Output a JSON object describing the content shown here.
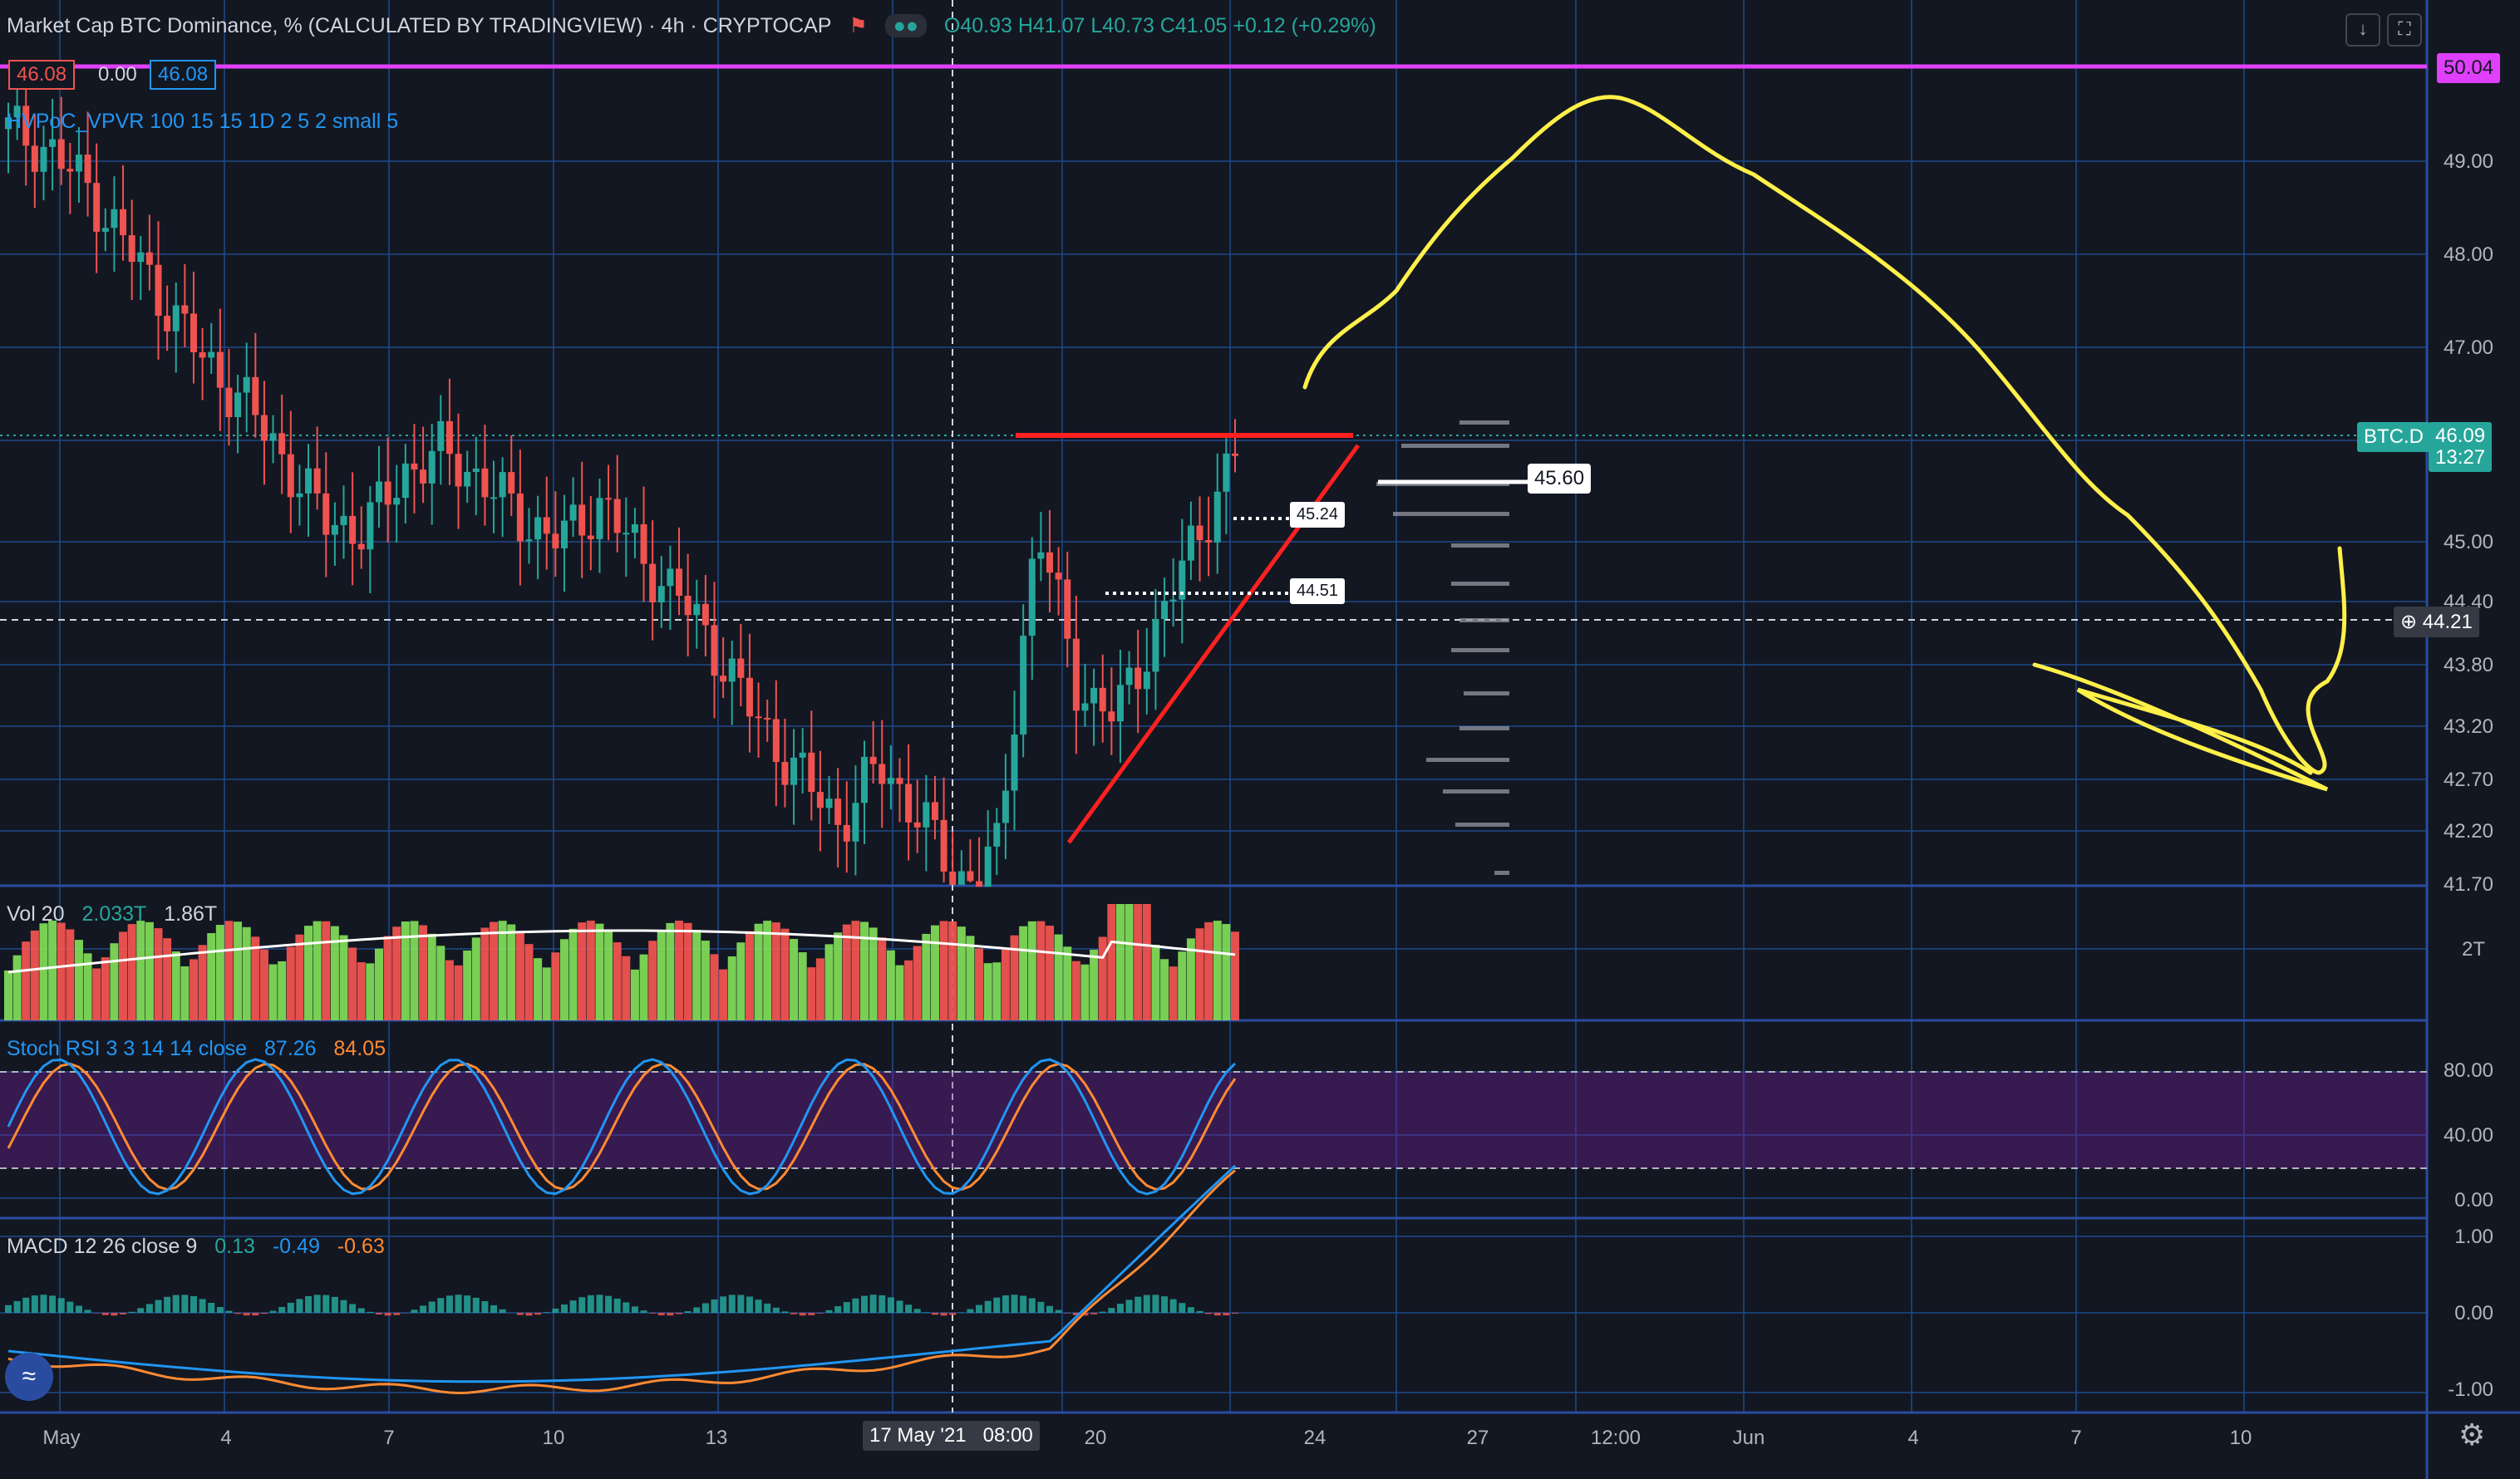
{
  "header": {
    "title": "Market Cap BTC Dominance, % (CALCULATED BY TRADINGVIEW) · 4h · CRYPTOCAP",
    "ohlc": "O40.93 H41.07 L40.73 C41.05 +0.12 (+0.29%)",
    "price_box_left": "46.08",
    "price_box_mid": "0.00",
    "price_box_right": "46.08",
    "indicator_vpvr": "HVPoC_VPVR 100 15 15 1D 2 5 2 small 5"
  },
  "panes": {
    "volume": {
      "label": "Vol 20",
      "v1": "2.033T",
      "v2": "1.86T",
      "axis": [
        "2T"
      ]
    },
    "stoch": {
      "label": "Stoch RSI 3 3 14 14 close",
      "k": "87.26",
      "d": "84.05",
      "axis": [
        "80.00",
        "40.00",
        "0.00"
      ]
    },
    "macd": {
      "label": "MACD 12 26 close 9",
      "hist": "0.13",
      "macd": "-0.49",
      "signal": "-0.63",
      "axis": [
        "1.00",
        "0.00",
        "-1.00"
      ]
    }
  },
  "price_axis": {
    "ticks": [
      "49.00",
      "48.00",
      "47.00",
      "45.00",
      "44.40",
      "43.80",
      "43.20",
      "42.70",
      "42.20",
      "41.70"
    ],
    "badges": {
      "magenta": "50.04",
      "btcd_symbol": "BTC.D",
      "btcd_price": "46.09",
      "btcd_countdown": "13:27",
      "crosshair": "44.21"
    }
  },
  "time_axis": {
    "ticks": [
      "May",
      "4",
      "7",
      "10",
      "13",
      "20",
      "24",
      "27",
      "12:00",
      "Jun",
      "4",
      "7",
      "10"
    ],
    "crosshair_label": "17 May '21   08:00"
  },
  "callouts": {
    "poc": "45.60",
    "level1": "45.24",
    "level2": "44.51"
  },
  "chart_data": {
    "type": "candlestick",
    "title": "Market Cap BTC Dominance, % (CALCULATED BY TRADINGVIEW)",
    "interval": "4h",
    "ylim": [
      41.7,
      50.3
    ],
    "candles_approx_close": [
      49.4,
      49.2,
      48.8,
      48.2,
      47.6,
      47.0,
      46.6,
      46.0,
      45.4,
      45.3,
      45.9,
      46.1,
      45.8,
      45.4,
      45.2,
      45.6,
      45.0,
      44.6,
      44.0,
      43.3,
      42.8,
      42.3,
      42.9,
      42.4,
      41.7,
      42.0,
      45.4,
      43.7,
      43.4,
      44.3,
      45.2,
      46.09
    ],
    "horizontal_lines": [
      50.04,
      46.09,
      44.21
    ],
    "stoch_rsi": {
      "k": 87.26,
      "d": 84.05,
      "bands": [
        80,
        20
      ]
    },
    "macd": {
      "hist": 0.13,
      "macd": -0.49,
      "signal": -0.63
    }
  },
  "colors": {
    "bg": "#131722",
    "up": "#26a69a",
    "down": "#ef5350",
    "grid": "#1e4a8a",
    "magenta": "#e040fb",
    "annotation": "#fff04a",
    "resistance": "#ff2020"
  }
}
